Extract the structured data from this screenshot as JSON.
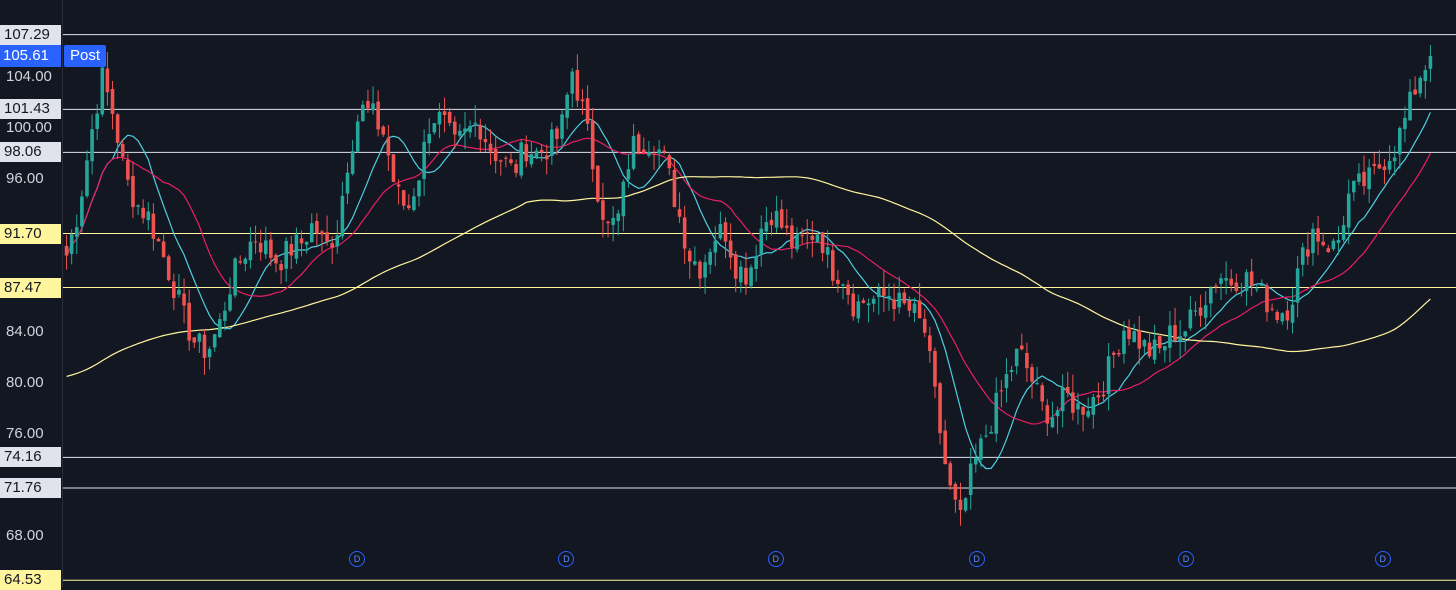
{
  "chart_data": {
    "type": "candlestick",
    "ylim": [
      64.0,
      110.0
    ],
    "y_ticks": [
      "96.00",
      "84.00",
      "80.00",
      "76.00",
      "68.00"
    ],
    "current_price": "105.61",
    "session_badge": "Post",
    "levels": [
      {
        "value": 107.29,
        "label": "107.29",
        "color": "#e0e3eb",
        "tag_bg": "#e0e3eb"
      },
      {
        "value": 101.43,
        "label": "101.43",
        "color": "#e0e3eb",
        "tag_bg": "#e0e3eb"
      },
      {
        "value": 98.06,
        "label": "98.06",
        "color": "#e0e3eb",
        "tag_bg": "#e0e3eb"
      },
      {
        "value": 91.7,
        "label": "91.70",
        "color": "#fff59d",
        "tag_bg": "#fff59d"
      },
      {
        "value": 87.47,
        "label": "87.47",
        "color": "#fff59d",
        "tag_bg": "#fff59d"
      },
      {
        "value": 74.16,
        "label": "74.16",
        "color": "#e0e3eb",
        "tag_bg": "#e0e3eb"
      },
      {
        "value": 71.76,
        "label": "71.76",
        "color": "#e0e3eb",
        "tag_bg": "#e0e3eb"
      },
      {
        "value": 64.53,
        "label": "64.53",
        "color": "#fff59d",
        "tag_bg": "#fff59d"
      }
    ],
    "partial_ticks": [
      "104.00",
      "100.00"
    ],
    "dividend_label": "D",
    "dividend_bars": [
      70,
      120,
      170,
      218,
      268,
      315
    ],
    "price_path": [
      90.0,
      93.5,
      99.0,
      104.0,
      101.0,
      96.0,
      94.0,
      93.0,
      90.5,
      88.0,
      85.0,
      83.0,
      82.5,
      84.5,
      88.0,
      90.0,
      91.5,
      90.5,
      89.5,
      90.5,
      91.0,
      92.5,
      90.5,
      92.0,
      98.0,
      101.5,
      101.0,
      99.5,
      95.0,
      93.5,
      96.5,
      101.0,
      100.5,
      98.5,
      99.5,
      100.5,
      98.5,
      97.5,
      96.5,
      98.5,
      98.0,
      98.5,
      99.5,
      104.5,
      101.0,
      96.0,
      92.0,
      93.0,
      98.5,
      99.0,
      99.0,
      97.0,
      93.5,
      90.0,
      89.0,
      91.5,
      92.0,
      89.0,
      88.5,
      92.0,
      93.5,
      92.0,
      90.5,
      91.5,
      92.0,
      89.0,
      88.5,
      86.0,
      86.5,
      86.5,
      87.0,
      86.0,
      85.5,
      84.0,
      78.0,
      72.0,
      69.0,
      73.0,
      75.5,
      78.0,
      80.5,
      82.5,
      80.5,
      78.0,
      77.5,
      79.0,
      78.0,
      78.5,
      79.5,
      82.0,
      84.5,
      83.5,
      82.5,
      82.5,
      84.0,
      84.0,
      85.5,
      87.0,
      88.5,
      88.0,
      88.5,
      87.5,
      86.5,
      85.5,
      86.0,
      89.5,
      92.0,
      91.0,
      90.5,
      94.5,
      95.5,
      96.0,
      97.5,
      98.5,
      101.0,
      104.0,
      105.61
    ]
  }
}
